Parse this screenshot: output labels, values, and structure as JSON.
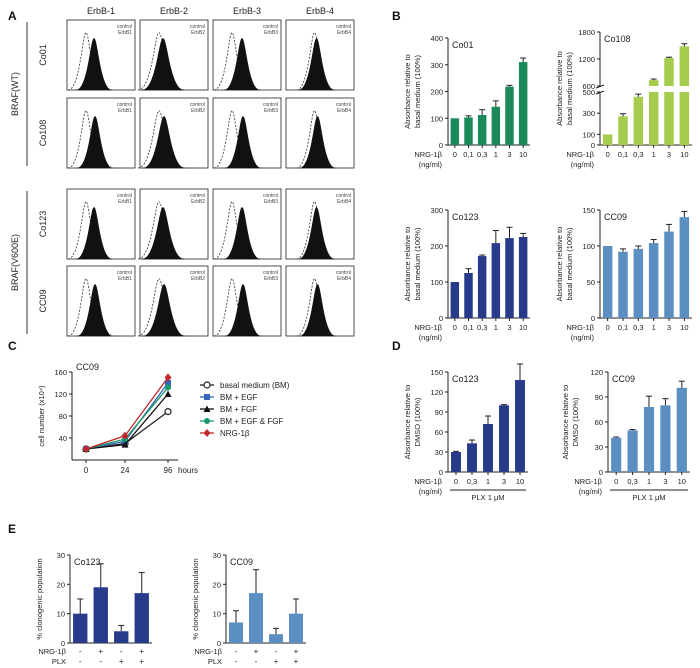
{
  "figure": {
    "panel_labels": [
      "A",
      "B",
      "C",
      "D",
      "E"
    ],
    "colors": {
      "green": "#1a8a5a",
      "lightgreen": "#a6cc4e",
      "navy": "#283a8a",
      "steel": "#5b8fc2"
    }
  },
  "panel_a": {
    "columns": [
      "ErbB-1",
      "ErbB-2",
      "ErbB-3",
      "ErbB-4"
    ],
    "group_labels": [
      "BRAF(WT)",
      "BRAF(V600E)"
    ],
    "row_labels": [
      "Co01",
      "Co108",
      "Co123",
      "CC09"
    ],
    "legend_control": "control",
    "legend_markers": [
      "ErbB1",
      "ErbB2",
      "ErbB3",
      "ErbB4"
    ]
  },
  "chart_data": [
    {
      "id": "b_co01",
      "type": "bar",
      "title": "Co01",
      "ylabel": "Absorbance relative to basal medium (100%)",
      "xlabel": "NRG-1β (ng/ml)",
      "xlabel_line1": "NRG-1β",
      "xlabel_line2": "(ng/ml)",
      "categories": [
        "0",
        "0,1",
        "0,3",
        "1",
        "3",
        "10"
      ],
      "values": [
        100,
        103,
        112,
        143,
        218,
        310
      ],
      "errors": [
        0,
        6,
        20,
        22,
        5,
        15
      ],
      "ylim": [
        0,
        400
      ],
      "yticks": [
        "0",
        "100",
        "200",
        "300",
        "400"
      ],
      "color": "#1a8a5a"
    },
    {
      "id": "b_co108",
      "type": "bar",
      "title": "Co108",
      "ylabel": "Absorbance relative to basal medium (100%)",
      "xlabel": "NRG-1β (ng/ml)",
      "xlabel_line1": "NRG-1β",
      "xlabel_line2": "(ng/ml)",
      "categories": [
        "0",
        "0,1",
        "0,3",
        "1",
        "3",
        "10"
      ],
      "values": [
        100,
        270,
        455,
        730,
        1220,
        1480
      ],
      "errors": [
        0,
        25,
        25,
        25,
        20,
        60
      ],
      "axis_break": [
        500,
        600
      ],
      "yticks_low": [
        "0",
        "100",
        "300",
        "500"
      ],
      "yticks_high": [
        "600",
        "1200",
        "1800"
      ],
      "color": "#a6cc4e"
    },
    {
      "id": "b_co123",
      "type": "bar",
      "title": "Co123",
      "ylabel": "Absorbance relative to basal medium (100%)",
      "xlabel": "NRG-1β (ng/ml)",
      "xlabel_line1": "NRG-1β",
      "xlabel_line2": "(ng/ml)",
      "categories": [
        "0",
        "0,1",
        "0,3",
        "1",
        "3",
        "10"
      ],
      "values": [
        100,
        125,
        172,
        208,
        222,
        225
      ],
      "errors": [
        0,
        12,
        3,
        35,
        30,
        10
      ],
      "ylim": [
        0,
        300
      ],
      "yticks": [
        "0",
        "100",
        "200",
        "300"
      ],
      "color": "#283a8a"
    },
    {
      "id": "b_cc09",
      "type": "bar",
      "title": "CC09",
      "ylabel": "Absorbance relative to basal medium (100%)",
      "xlabel": "NRG-1β (ng/ml)",
      "xlabel_line1": "NRG-1β",
      "xlabel_line2": "(ng/ml)",
      "categories": [
        "0",
        "0,1",
        "0,3",
        "1",
        "3",
        "10"
      ],
      "values": [
        100,
        92,
        96,
        104,
        120,
        140
      ],
      "errors": [
        0,
        4,
        4,
        5,
        10,
        8
      ],
      "ylim": [
        0,
        150
      ],
      "yticks": [
        "0",
        "50",
        "100",
        "150"
      ],
      "color": "#5b8fc2"
    },
    {
      "id": "c_growth",
      "type": "line",
      "title": "CC09",
      "ylabel": "cell number (x10⁴)",
      "x": [
        "0",
        "24",
        "96"
      ],
      "x_unit": "hours",
      "ylim": [
        0,
        160
      ],
      "yticks": [
        "40",
        "80",
        "120",
        "160"
      ],
      "series": [
        {
          "name": "basal medium (BM)",
          "values": [
            20,
            30,
            88
          ],
          "errors": [
            1,
            1,
            5
          ],
          "color": "#222222",
          "marker": "open-circle"
        },
        {
          "name": "BM + EGF",
          "values": [
            20,
            34,
            140
          ],
          "errors": [
            1,
            1,
            4
          ],
          "color": "#3366bb",
          "marker": "square"
        },
        {
          "name": "BM + FGF",
          "values": [
            20,
            28,
            120
          ],
          "errors": [
            1,
            1,
            5
          ],
          "color": "#111111",
          "marker": "triangle"
        },
        {
          "name": "BM + EGF & FGF",
          "values": [
            20,
            38,
            132
          ],
          "errors": [
            1,
            1,
            5
          ],
          "color": "#1a9a6a",
          "marker": "circle"
        },
        {
          "name": "NRG-1β",
          "values": [
            20,
            44,
            150
          ],
          "errors": [
            1,
            2,
            3
          ],
          "color": "#c0282d",
          "marker": "diamond"
        }
      ]
    },
    {
      "id": "d_co123",
      "type": "bar",
      "title": "Co123",
      "ylabel": "Absorbance relative to DMSO (100%)",
      "xlabel": "NRG-1β (ng/ml)",
      "xlabel_line1": "NRG-1β",
      "xlabel_line2": "(ng/ml)",
      "categories": [
        "0",
        "0,3",
        "1",
        "3",
        "10"
      ],
      "values": [
        30,
        43,
        72,
        100,
        138
      ],
      "errors": [
        1,
        5,
        12,
        1,
        24
      ],
      "group_label": "PLX 1 μM",
      "ylim": [
        0,
        150
      ],
      "yticks": [
        "0",
        "30",
        "60",
        "90",
        "120",
        "150"
      ],
      "color": "#283a8a"
    },
    {
      "id": "d_cc09",
      "type": "bar",
      "title": "CC09",
      "ylabel": "Absorbance relative to DMSO (100%)",
      "xlabel": "NRG-1β (ng/ml)",
      "xlabel_line1": "NRG-1β",
      "xlabel_line2": "(ng/ml)",
      "categories": [
        "0",
        "0,3",
        "1",
        "3",
        "10"
      ],
      "values": [
        41,
        50,
        78,
        80,
        101
      ],
      "errors": [
        1,
        1,
        13,
        8,
        8
      ],
      "group_label": "PLX 1 μM",
      "ylim": [
        0,
        120
      ],
      "yticks": [
        "0",
        "30",
        "60",
        "90",
        "120"
      ],
      "color": "#5b8fc2"
    },
    {
      "id": "e_co123",
      "type": "bar",
      "title": "Co123",
      "ylabel": "% clonogenic population",
      "categories": [
        "NRG-1β - / PLX -",
        "NRG-1β + / PLX -",
        "NRG-1β - / PLX +",
        "NRG-1β + / PLX +"
      ],
      "row_labels": [
        "NRG-1β",
        "PLX"
      ],
      "nrg_signs": [
        "-",
        "+",
        "-",
        "+"
      ],
      "plx_signs": [
        "-",
        "-",
        "+",
        "+"
      ],
      "values": [
        10,
        19,
        4,
        17
      ],
      "errors": [
        5,
        8,
        2,
        7
      ],
      "ylim": [
        0,
        30
      ],
      "yticks": [
        "0",
        "10",
        "20",
        "30"
      ],
      "color": "#283a8a"
    },
    {
      "id": "e_cc09",
      "type": "bar",
      "title": "CC09",
      "ylabel": "% clonogenic population",
      "categories": [
        "NRG-1β - / PLX -",
        "NRG-1β + / PLX -",
        "NRG-1β - / PLX +",
        "NRG-1β + / PLX +"
      ],
      "row_labels": [
        "NRG-1β",
        "PLX"
      ],
      "nrg_signs": [
        "-",
        "+",
        "-",
        "+"
      ],
      "plx_signs": [
        "-",
        "-",
        "+",
        "+"
      ],
      "values": [
        7,
        17,
        3,
        10
      ],
      "errors": [
        4,
        8,
        2,
        5
      ],
      "ylim": [
        0,
        30
      ],
      "yticks": [
        "0",
        "10",
        "20",
        "30"
      ],
      "color": "#5b8fc2"
    }
  ]
}
